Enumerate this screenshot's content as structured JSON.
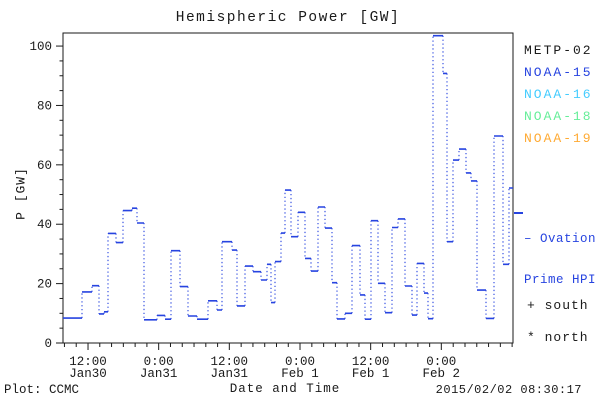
{
  "title": "Hemispheric Power [GW]",
  "footer": {
    "left": "Plot: CCMC",
    "right": "2015/02/02 08:30:17"
  },
  "legend": {
    "satellites": [
      {
        "label": "METP-02",
        "color": "#1a1a1a"
      },
      {
        "label": "NOAA-15",
        "color": "#2744e0"
      },
      {
        "label": "NOAA-16",
        "color": "#44ccff"
      },
      {
        "label": "NOAA-18",
        "color": "#66ee99"
      },
      {
        "label": "NOAA-19",
        "color": "#ffaa33"
      }
    ],
    "model": {
      "line1": "– Ovation",
      "line2": "Prime HPI",
      "color": "#2744e0"
    },
    "south": "+ south",
    "north": "* north"
  },
  "chart_data": {
    "type": "line",
    "style": "step",
    "title": "Hemispheric Power [GW]",
    "xlabel": "Date and Time",
    "ylabel": "P [GW]",
    "ylim": [
      0,
      104.4
    ],
    "y_ticks": [
      0,
      20,
      40,
      60,
      80,
      100
    ],
    "y_minor_step": 5,
    "grid": false,
    "x_ticks": [
      {
        "frac": 0.0556,
        "time": "12:00",
        "date": "Jan30"
      },
      {
        "frac": 0.2126,
        "time": "0:00",
        "date": "Jan31"
      },
      {
        "frac": 0.3696,
        "time": "12:00",
        "date": "Jan31"
      },
      {
        "frac": 0.5267,
        "time": "0:00",
        "date": "Feb 1"
      },
      {
        "frac": 0.6837,
        "time": "12:00",
        "date": "Feb 1"
      },
      {
        "frac": 0.8407,
        "time": "0:00",
        "date": "Feb 2"
      }
    ],
    "x_minor": {
      "start_frac": 0.0032,
      "step_frac": 0.02618
    },
    "series": [
      {
        "name": "Ovation Prime HPI",
        "color": "#2744e0",
        "points": [
          [
            0.0,
            8.4
          ],
          [
            0.0422,
            17.2
          ],
          [
            0.0644,
            19.3
          ],
          [
            0.08,
            9.8
          ],
          [
            0.0911,
            10.5
          ],
          [
            0.1,
            36.9
          ],
          [
            0.1178,
            33.8
          ],
          [
            0.1333,
            44.6
          ],
          [
            0.1533,
            45.4
          ],
          [
            0.1644,
            40.4
          ],
          [
            0.18,
            7.8
          ],
          [
            0.2089,
            9.3
          ],
          [
            0.2267,
            8.0
          ],
          [
            0.24,
            31.1
          ],
          [
            0.26,
            19.0
          ],
          [
            0.2778,
            9.1
          ],
          [
            0.2978,
            8.0
          ],
          [
            0.3222,
            14.2
          ],
          [
            0.3422,
            11.1
          ],
          [
            0.3533,
            34.1
          ],
          [
            0.3756,
            31.3
          ],
          [
            0.3867,
            12.5
          ],
          [
            0.4044,
            25.9
          ],
          [
            0.4222,
            24.0
          ],
          [
            0.44,
            21.2
          ],
          [
            0.4533,
            26.5
          ],
          [
            0.4622,
            13.6
          ],
          [
            0.4711,
            27.4
          ],
          [
            0.4844,
            37.0
          ],
          [
            0.4933,
            51.5
          ],
          [
            0.5067,
            35.8
          ],
          [
            0.5222,
            44.0
          ],
          [
            0.5378,
            28.5
          ],
          [
            0.5511,
            24.2
          ],
          [
            0.5667,
            45.8
          ],
          [
            0.5822,
            38.7
          ],
          [
            0.5978,
            20.3
          ],
          [
            0.6089,
            8.1
          ],
          [
            0.6267,
            10.0
          ],
          [
            0.6422,
            32.8
          ],
          [
            0.66,
            16.2
          ],
          [
            0.6711,
            8.0
          ],
          [
            0.6844,
            41.2
          ],
          [
            0.7,
            20.1
          ],
          [
            0.7156,
            10.2
          ],
          [
            0.7311,
            38.9
          ],
          [
            0.7444,
            41.8
          ],
          [
            0.76,
            19.2
          ],
          [
            0.7756,
            9.4
          ],
          [
            0.7867,
            26.8
          ],
          [
            0.8022,
            16.8
          ],
          [
            0.8111,
            8.2
          ],
          [
            0.8222,
            103.5
          ],
          [
            0.8444,
            90.8
          ],
          [
            0.8533,
            34.1
          ],
          [
            0.8667,
            61.6
          ],
          [
            0.88,
            65.3
          ],
          [
            0.8956,
            57.3
          ],
          [
            0.9067,
            54.6
          ],
          [
            0.92,
            17.8
          ],
          [
            0.94,
            8.3
          ],
          [
            0.9578,
            69.7
          ],
          [
            0.9778,
            26.5
          ],
          [
            0.9911,
            52.2
          ]
        ]
      }
    ]
  }
}
